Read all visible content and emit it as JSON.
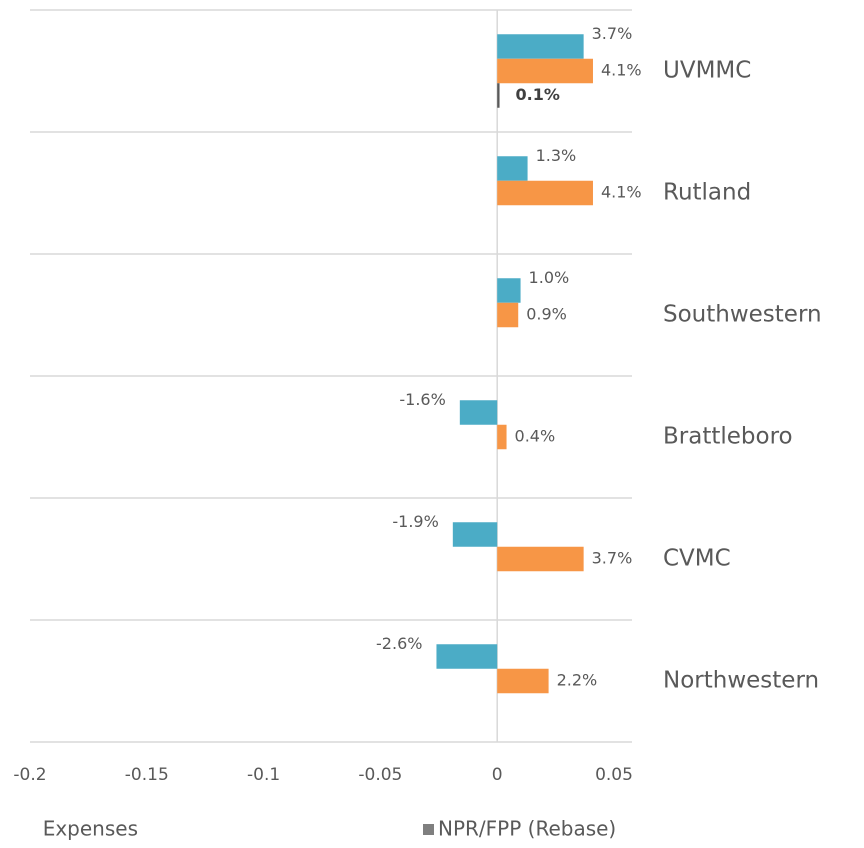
{
  "chart_data": {
    "type": "hbar",
    "categories": [
      "UVMMC",
      "Rutland",
      "Southwestern",
      "Brattleboro",
      "CVMC",
      "Northwestern"
    ],
    "series": [
      {
        "color": "#4bacc6",
        "values": [
          0.037,
          0.013,
          0.01,
          -0.016,
          -0.019,
          -0.026
        ],
        "value_labels": [
          "3.7%",
          "1.3%",
          "1.0%",
          "-1.6%",
          "-1.9%",
          "-2.6%"
        ]
      },
      {
        "name": "Expenses",
        "color": "#f79646",
        "values": [
          0.041,
          0.041,
          0.009,
          0.004,
          0.037,
          0.022
        ],
        "value_labels": [
          "4.1%",
          "4.1%",
          "0.9%",
          "0.4%",
          "3.7%",
          "2.2%"
        ]
      },
      {
        "name": "NPR/FPP (Rebase)",
        "color": "#595959",
        "values": [
          0.001,
          null,
          null,
          null,
          null,
          null
        ],
        "value_labels": [
          "0.1%",
          null,
          null,
          null,
          null,
          null
        ]
      }
    ],
    "xlim": [
      -0.2,
      0.05
    ],
    "xticks": [
      -0.2,
      -0.15,
      -0.1,
      -0.05,
      0,
      0.05
    ],
    "grid": true
  }
}
